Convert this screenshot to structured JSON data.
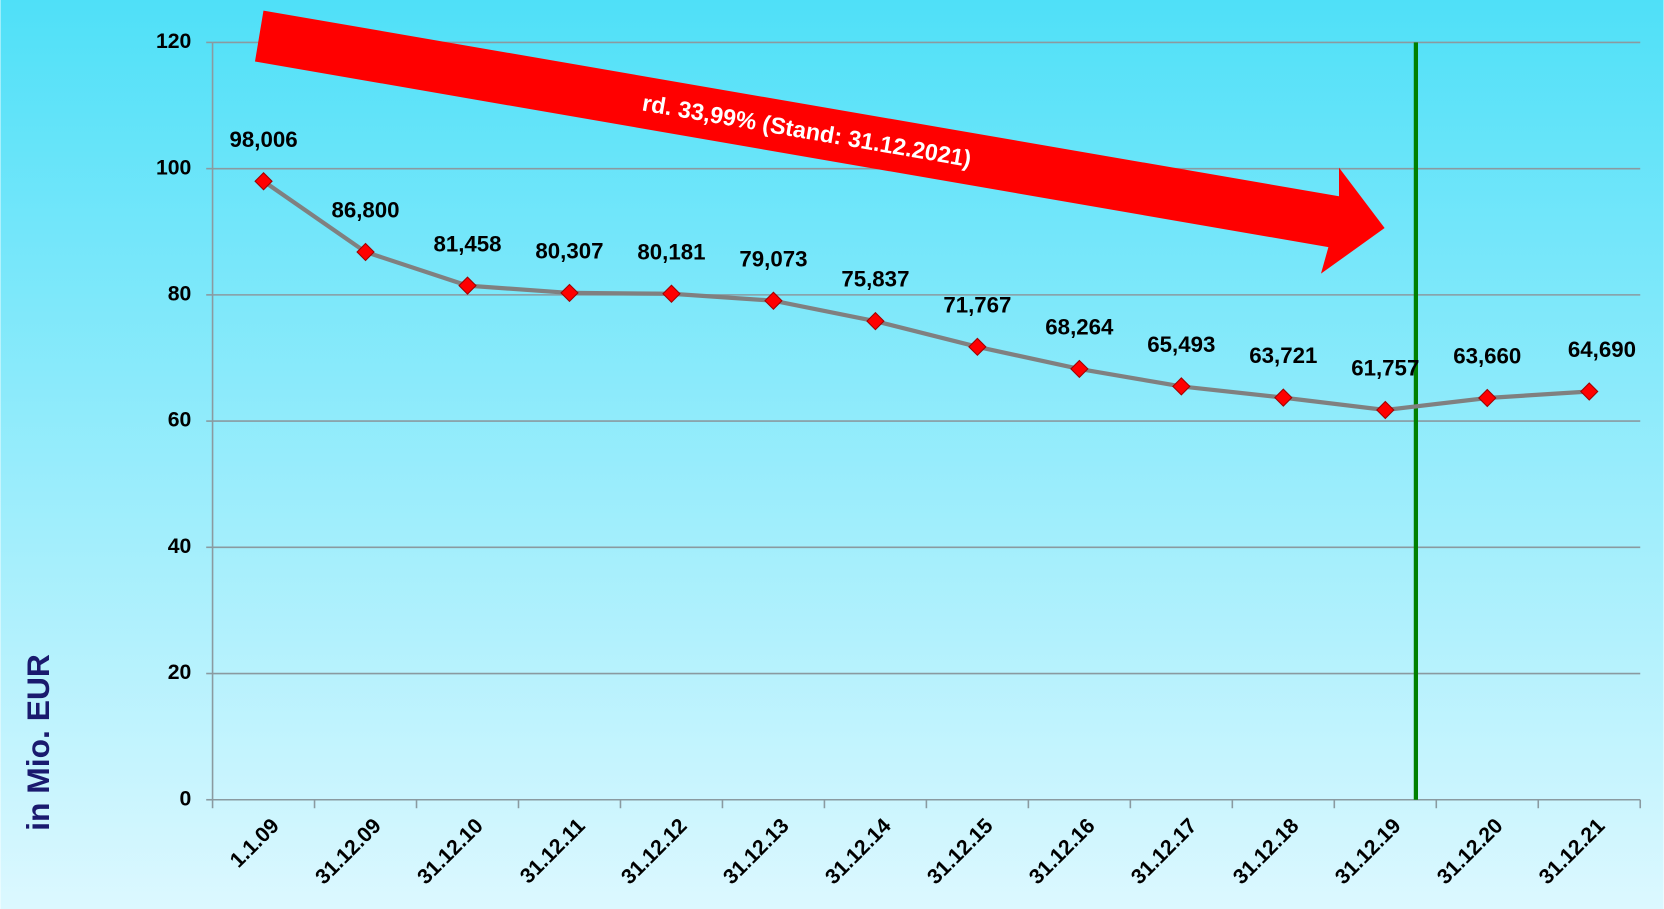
{
  "chart_data": {
    "type": "line",
    "ylabel": "in Mio. EUR",
    "annotation": "rd. 33,99% (Stand: 31.12.2021)",
    "categories": [
      "1.1.09",
      "31.12.09",
      "31.12.10",
      "31.12.11",
      "31.12.12",
      "31.12.13",
      "31.12.14",
      "31.12.15",
      "31.12.16",
      "31.12.17",
      "31.12.18",
      "31.12.19",
      "31.12.20",
      "31.12.21"
    ],
    "series": [
      {
        "color": "#808080",
        "marker_color": "#ff0000",
        "values": [
          98.006,
          86.8,
          81.458,
          80.307,
          80.181,
          79.073,
          75.837,
          71.767,
          68.264,
          65.493,
          63.721,
          61.757,
          63.66,
          64.69
        ],
        "value_labels": [
          "98,006",
          "86,800",
          "81,458",
          "80,307",
          "80,181",
          "79,073",
          "75,837",
          "71,767",
          "68,264",
          "65,493",
          "63,721",
          "61,757",
          "63,660",
          "64,690"
        ]
      }
    ],
    "ylim": [
      0,
      120
    ],
    "yticks": [
      0,
      20,
      40,
      60,
      80,
      100,
      120
    ],
    "grid": true
  }
}
